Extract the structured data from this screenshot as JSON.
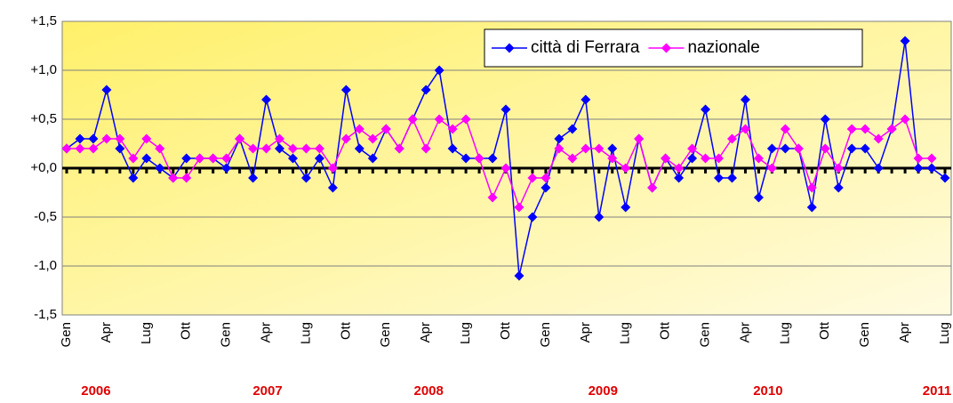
{
  "chart_data": {
    "type": "line",
    "categories": [
      "Gen",
      null,
      null,
      "Apr",
      null,
      null,
      "Lug",
      null,
      null,
      "Ott",
      null,
      null,
      "Gen",
      null,
      null,
      "Apr",
      null,
      null,
      "Lug",
      null,
      null,
      "Ott",
      null,
      null,
      "Gen",
      null,
      null,
      "Apr",
      null,
      null,
      "Lug",
      null,
      null,
      "Ott",
      null,
      null,
      "Gen",
      null,
      null,
      "Apr",
      null,
      null,
      "Lug",
      null,
      null,
      "Ott",
      null,
      null,
      "Gen",
      null,
      null,
      "Apr",
      null,
      null,
      "Lug",
      null,
      null,
      "Ott",
      null,
      null,
      "Gen",
      null,
      null,
      "Apr",
      null,
      null,
      "Lug"
    ],
    "year_labels": [
      "2006",
      "2007",
      "2008",
      "2009",
      "2010",
      "2011"
    ],
    "series": [
      {
        "name": "città di Ferrara",
        "color": "#0000ff",
        "values": [
          0.2,
          0.3,
          0.3,
          0.8,
          0.2,
          -0.1,
          0.1,
          0.0,
          -0.1,
          0.1,
          0.1,
          0.1,
          0.0,
          0.3,
          -0.1,
          0.7,
          0.2,
          0.1,
          -0.1,
          0.1,
          -0.2,
          0.8,
          0.2,
          0.1,
          0.4,
          0.2,
          0.5,
          0.8,
          1.0,
          0.2,
          0.1,
          0.1,
          0.1,
          0.6,
          -1.1,
          -0.5,
          -0.2,
          0.3,
          0.4,
          0.7,
          -0.5,
          0.2,
          -0.4,
          0.3,
          -0.2,
          0.1,
          -0.1,
          0.1,
          0.6,
          -0.1,
          -0.1,
          0.7,
          -0.3,
          0.2,
          0.2,
          0.2,
          -0.4,
          0.5,
          -0.2,
          0.2,
          0.2,
          0.0,
          0.4,
          1.3,
          0.0,
          0.0,
          -0.1
        ]
      },
      {
        "name": "nazionale",
        "color": "#ff00ff",
        "values": [
          0.2,
          0.2,
          0.2,
          0.3,
          0.3,
          0.1,
          0.3,
          0.2,
          -0.1,
          -0.1,
          0.1,
          0.1,
          0.1,
          0.3,
          0.2,
          0.2,
          0.3,
          0.2,
          0.2,
          0.2,
          0.0,
          0.3,
          0.4,
          0.3,
          0.4,
          0.2,
          0.5,
          0.2,
          0.5,
          0.4,
          0.5,
          0.1,
          -0.3,
          0.0,
          -0.4,
          -0.1,
          -0.1,
          0.2,
          0.1,
          0.2,
          0.2,
          0.1,
          0.0,
          0.3,
          -0.2,
          0.1,
          0.0,
          0.2,
          0.1,
          0.1,
          0.3,
          0.4,
          0.1,
          0.0,
          0.4,
          0.2,
          -0.2,
          0.2,
          0.0,
          0.4,
          0.4,
          0.3,
          0.4,
          0.5,
          0.1,
          0.1,
          null
        ]
      }
    ],
    "ylim": [
      -1.5,
      1.5
    ],
    "yticks": [
      {
        "value": 1.5,
        "label": "+1,5"
      },
      {
        "value": 1.0,
        "label": "+1,0"
      },
      {
        "value": 0.5,
        "label": "+0,5"
      },
      {
        "value": 0.0,
        "label": "+0,0"
      },
      {
        "value": -0.5,
        "label": "-0,5"
      },
      {
        "value": -1.0,
        "label": "-1,0"
      },
      {
        "value": -1.5,
        "label": "-1,5"
      }
    ],
    "grid": true
  }
}
